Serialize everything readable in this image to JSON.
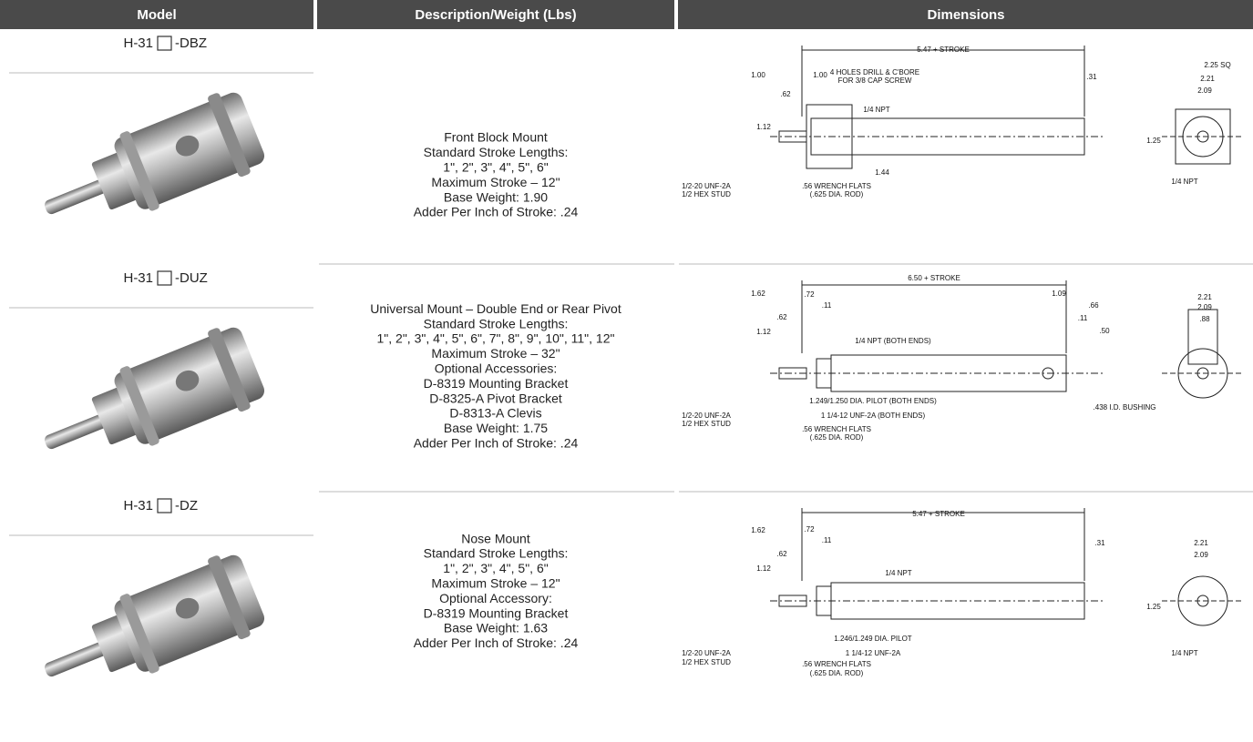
{
  "header": {
    "columns": [
      "Model",
      "Description/Weight (Lbs)",
      "Dimensions"
    ]
  },
  "rows": [
    {
      "model": {
        "prefix": "H-31",
        "suffix": "-DBZ"
      },
      "description": [
        "Front Block Mount",
        "Standard Stroke Lengths:",
        "1\", 2\", 3\", 4\", 5\", 6\"",
        "Maximum Stroke – 12\"",
        "Base Weight: 1.90",
        "Adder Per Inch of Stroke: .24"
      ],
      "drawing_labels": [
        "5.47 + STROKE",
        "1.00",
        "1.00",
        "4 HOLES DRILL & C'BORE",
        "FOR 3/8 CAP SCREW",
        ".31",
        ".62",
        "1.12",
        "1/4 NPT",
        "1.44",
        "1/2-20 UNF-2A",
        "1/2 HEX STUD",
        ".56 WRENCH FLATS",
        "(.625 DIA. ROD)",
        "2.25 SQ",
        "2.21",
        "2.09",
        "1.25",
        "1/4 NPT"
      ]
    },
    {
      "model": {
        "prefix": "H-31",
        "suffix": "-DUZ"
      },
      "description": [
        "Universal Mount – Double End or Rear Pivot",
        "Standard Stroke Lengths:",
        "1\", 2\", 3\", 4\", 5\", 6\", 7\", 8\", 9\", 10\", 11\", 12\"",
        "Maximum Stroke – 32\"",
        "Optional Accessories:",
        "D-8319 Mounting Bracket",
        "D-8325-A Pivot Bracket",
        "D-8313-A Clevis",
        "Base Weight: 1.75",
        "Adder Per Inch of Stroke: .24"
      ],
      "drawing_labels": [
        "6.50 + STROKE",
        "1.62",
        ".72",
        ".11",
        "1.09",
        ".66",
        ".11",
        ".50",
        ".62",
        "1.12",
        "1/4 NPT (BOTH ENDS)",
        "1.249/1.250 DIA. PILOT (BOTH ENDS)",
        "1 1/4-12 UNF-2A (BOTH ENDS)",
        ".438 I.D. BUSHING",
        "1/2-20 UNF-2A",
        "1/2 HEX STUD",
        ".56 WRENCH FLATS",
        "(.625 DIA. ROD)",
        "2.21",
        "2.09",
        ".88"
      ]
    },
    {
      "model": {
        "prefix": "H-31",
        "suffix": "-DZ"
      },
      "description": [
        "Nose Mount",
        "Standard Stroke Lengths:",
        "1\", 2\", 3\", 4\", 5\", 6\"",
        "Maximum Stroke – 12\"",
        "Optional Accessory:",
        "D-8319 Mounting Bracket",
        "Base Weight: 1.63",
        "Adder Per Inch of Stroke: .24"
      ],
      "drawing_labels": [
        "5.47 + STROKE",
        "1.62",
        ".72",
        ".11",
        ".31",
        ".62",
        "1.12",
        "1/4 NPT",
        "1.246/1.249 DIA. PILOT",
        "1 1/4-12 UNF-2A",
        "1/2-20 UNF-2A",
        "1/2 HEX STUD",
        ".56 WRENCH FLATS",
        "(.625 DIA. ROD)",
        "2.21",
        "2.09",
        "1.25",
        "1/4 NPT"
      ]
    }
  ]
}
